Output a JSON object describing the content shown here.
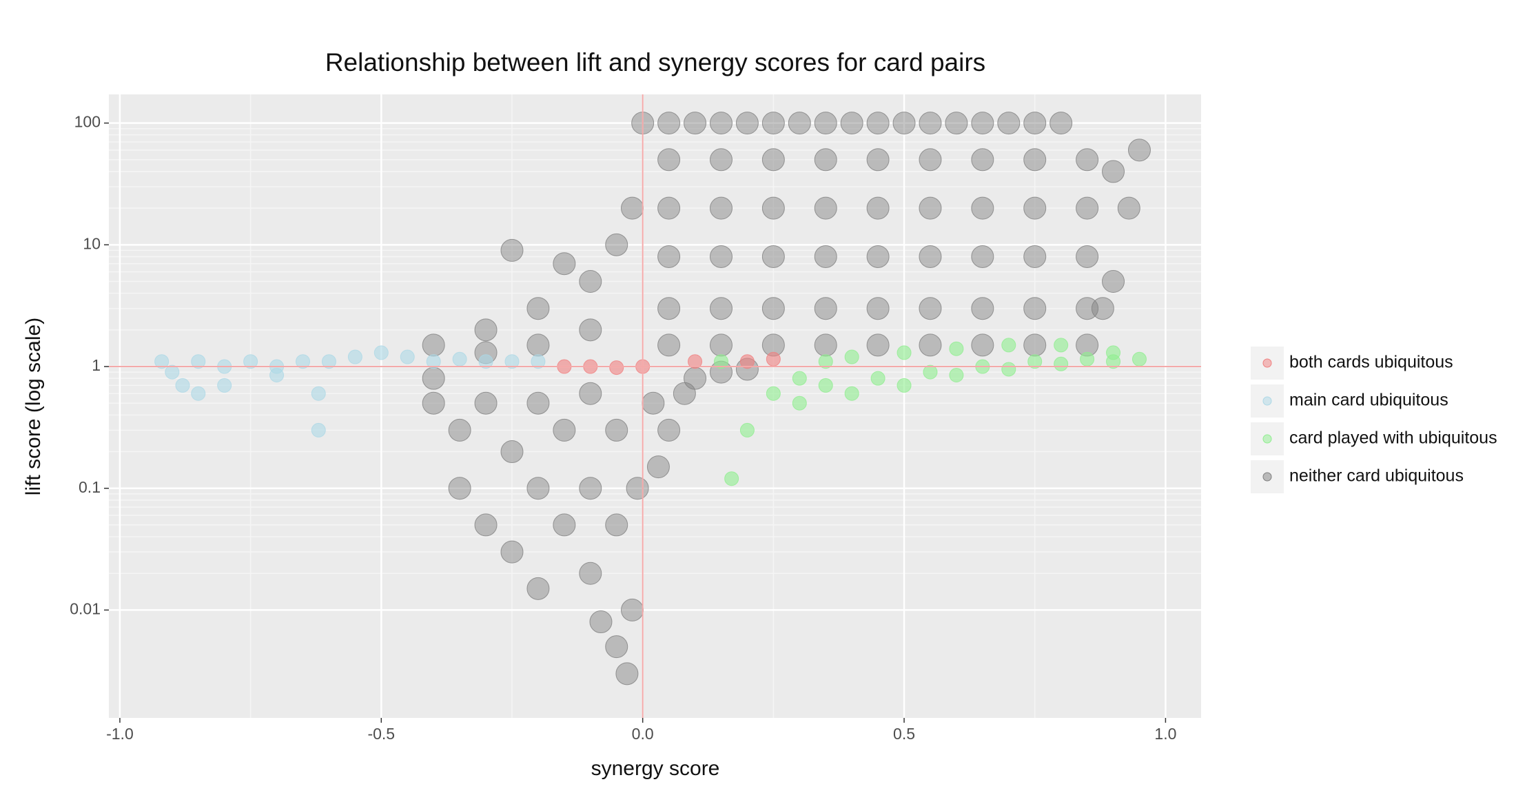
{
  "chart_data": {
    "type": "scatter",
    "title": "Relationship between lift and synergy scores for card pairs",
    "x_label": "synergy score",
    "y_label": "lift score (log scale)",
    "xlim": [
      -1.021,
      1.068
    ],
    "ylim": [
      0.0013,
      172
    ],
    "log_y": true,
    "grid": true,
    "legend_position": "right",
    "xticks": [
      {
        "value": -1,
        "label": "-1.0"
      },
      {
        "value": -0.5,
        "label": "-0.5"
      },
      {
        "value": 0,
        "label": "0.0"
      },
      {
        "value": 0.5,
        "label": "0.5"
      },
      {
        "value": 1,
        "label": "1.0"
      }
    ],
    "yticks": [
      0.01,
      0.1,
      1,
      10,
      100
    ],
    "reference_lines": {
      "x": 0,
      "y": 1,
      "color": "#f4a9a9"
    },
    "series": [
      {
        "name": "both cards ubiquitous",
        "color": "#f08080",
        "x": [
          -0.15,
          -0.1,
          -0.05,
          0.0,
          0.1,
          0.2,
          0.25
        ],
        "values": [
          1,
          1,
          0.98,
          1,
          1.1,
          1.1,
          1.15
        ]
      },
      {
        "name": "main card ubiquitous",
        "color": "#add8e6",
        "x": [
          -0.92,
          -0.9,
          -0.88,
          -0.85,
          -0.85,
          -0.8,
          -0.8,
          -0.75,
          -0.7,
          -0.7,
          -0.65,
          -0.62,
          -0.62,
          -0.6,
          -0.55,
          -0.5,
          -0.45,
          -0.4,
          -0.35,
          -0.3,
          -0.25,
          -0.2
        ],
        "values": [
          1.1,
          0.9,
          0.7,
          0.6,
          1.1,
          1,
          0.7,
          1.1,
          1,
          0.85,
          1.1,
          0.3,
          0.6,
          1.1,
          1.2,
          1.3,
          1.2,
          1.1,
          1.15,
          1.1,
          1.1,
          1.1
        ]
      },
      {
        "name": "card played with ubiquitous",
        "color": "#90ee90",
        "x": [
          0.15,
          0.25,
          0.3,
          0.35,
          0.4,
          0.45,
          0.5,
          0.55,
          0.6,
          0.65,
          0.7,
          0.75,
          0.8,
          0.85,
          0.9,
          0.95,
          0.4,
          0.5,
          0.6,
          0.7,
          0.8,
          0.9,
          0.17,
          0.2,
          0.3,
          0.35
        ],
        "values": [
          1.1,
          0.6,
          0.5,
          0.7,
          0.6,
          0.8,
          0.7,
          0.9,
          0.85,
          1,
          0.95,
          1.1,
          1.05,
          1.15,
          1.1,
          1.15,
          1.2,
          1.3,
          1.4,
          1.5,
          1.5,
          1.3,
          0.12,
          0.3,
          0.8,
          1.1
        ]
      },
      {
        "name": "neither card ubiquitous",
        "color": "#7f7f7f",
        "x": [
          0.0,
          0.05,
          0.1,
          0.15,
          0.2,
          0.25,
          0.3,
          0.35,
          0.4,
          0.45,
          0.5,
          0.55,
          0.6,
          0.65,
          0.7,
          0.75,
          0.8,
          0.05,
          0.15,
          0.25,
          0.35,
          0.45,
          0.55,
          0.65,
          0.75,
          0.85,
          0.05,
          0.15,
          0.25,
          0.35,
          0.45,
          0.55,
          0.65,
          0.75,
          0.85,
          0.05,
          0.15,
          0.25,
          0.35,
          0.45,
          0.55,
          0.65,
          0.75,
          0.85,
          0.05,
          0.15,
          0.25,
          0.35,
          0.45,
          0.55,
          0.65,
          0.75,
          0.85,
          0.05,
          0.15,
          0.25,
          0.35,
          0.45,
          0.55,
          0.65,
          0.75,
          0.85,
          0.9,
          0.93,
          0.95,
          0.9,
          0.88,
          -0.4,
          -0.3,
          -0.3,
          -0.2,
          -0.2,
          -0.1,
          -0.1,
          -0.05,
          -0.02,
          -0.15,
          -0.25,
          -0.4,
          -0.4,
          -0.35,
          -0.35,
          -0.3,
          -0.3,
          -0.25,
          -0.25,
          -0.2,
          -0.2,
          -0.2,
          -0.15,
          -0.15,
          -0.1,
          -0.1,
          -0.1,
          -0.08,
          -0.05,
          -0.05,
          -0.05,
          -0.03,
          -0.02,
          -0.01,
          0.02,
          0.05,
          0.08,
          0.03,
          0.1,
          0.15,
          0.2
        ],
        "values": [
          100,
          100,
          100,
          100,
          100,
          100,
          100,
          100,
          100,
          100,
          100,
          100,
          100,
          100,
          100,
          100,
          100,
          50,
          50,
          50,
          50,
          50,
          50,
          50,
          50,
          50,
          20,
          20,
          20,
          20,
          20,
          20,
          20,
          20,
          20,
          8,
          8,
          8,
          8,
          8,
          8,
          8,
          8,
          8,
          3,
          3,
          3,
          3,
          3,
          3,
          3,
          3,
          3,
          1.5,
          1.5,
          1.5,
          1.5,
          1.5,
          1.5,
          1.5,
          1.5,
          1.5,
          40,
          20,
          60,
          5,
          3,
          1.5,
          2,
          1.3,
          3,
          1.5,
          5,
          2,
          10,
          20,
          7,
          9,
          0.5,
          0.8,
          0.3,
          0.1,
          0.5,
          0.05,
          0.2,
          0.03,
          0.5,
          0.1,
          0.015,
          0.3,
          0.05,
          0.6,
          0.1,
          0.02,
          0.008,
          0.3,
          0.05,
          0.005,
          0.003,
          0.01,
          0.1,
          0.5,
          0.3,
          0.6,
          0.15,
          0.8,
          0.9,
          0.95
        ]
      }
    ]
  }
}
